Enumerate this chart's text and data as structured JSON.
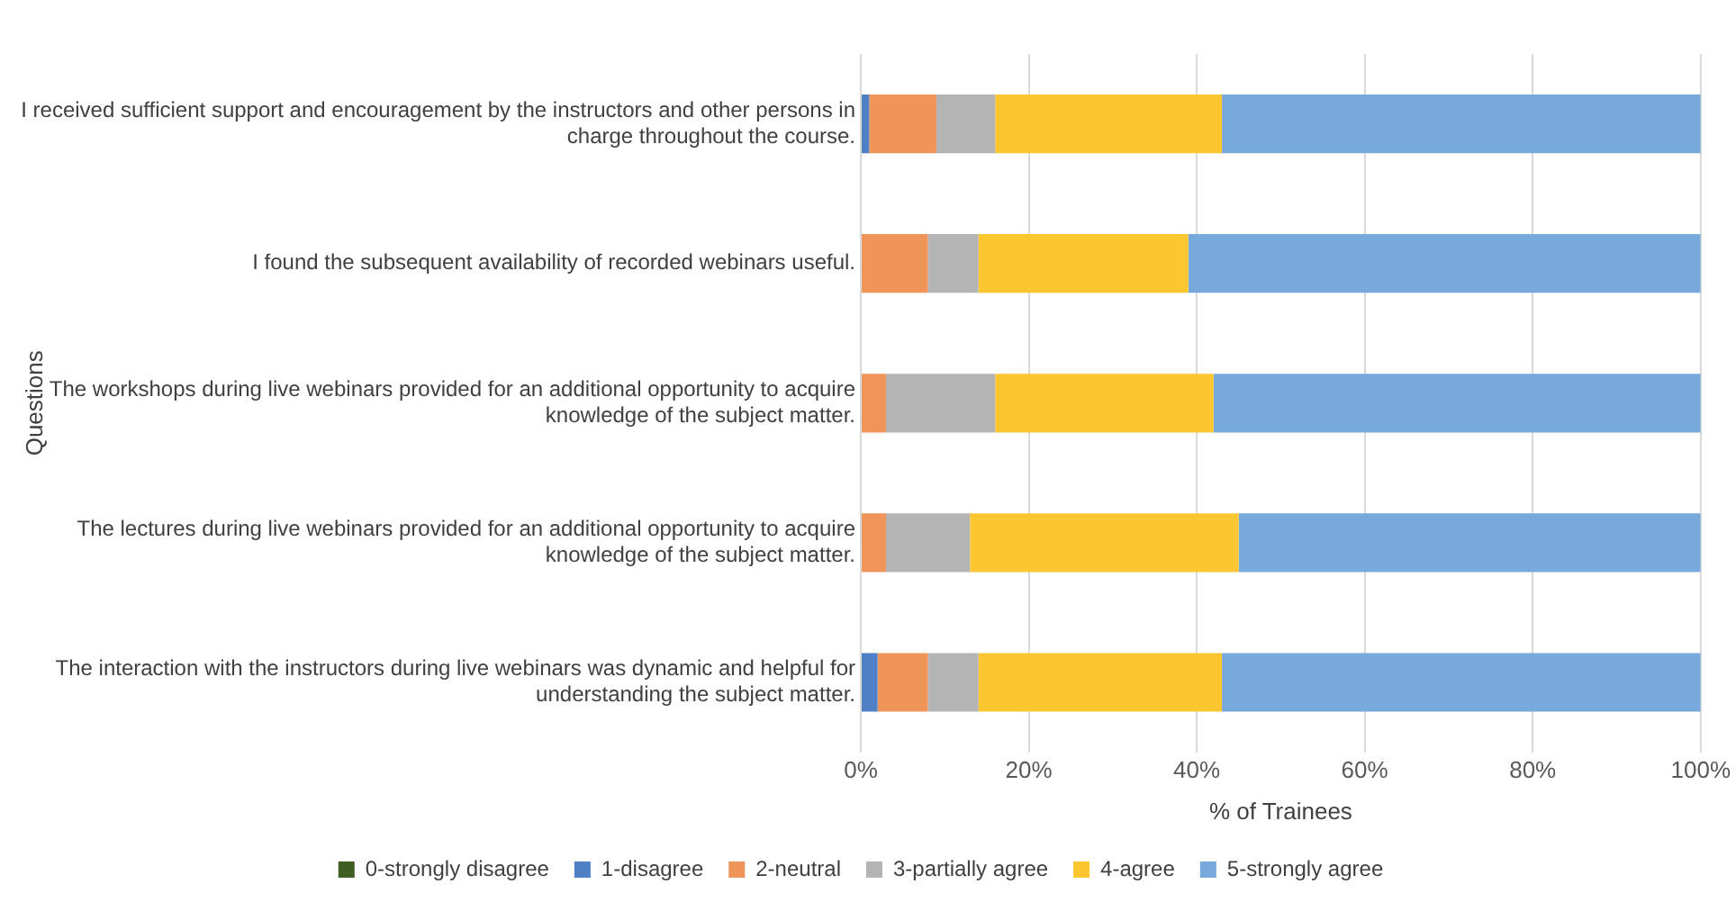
{
  "chart_data": {
    "type": "bar",
    "orientation": "horizontal",
    "stacked": true,
    "xlabel": "% of Trainees",
    "ylabel": "Questions",
    "categories": [
      "I received sufficient support and encouragement by the instructors and other persons in charge throughout the course.",
      "I found the subsequent availability of recorded webinars useful.",
      "The workshops during live webinars provided for an additional opportunity to acquire knowledge of the subject matter.",
      "The lectures during live webinars provided for an additional opportunity to acquire knowledge of the subject matter.",
      "The interaction with the instructors during live webinars was dynamic and helpful for understanding the subject matter."
    ],
    "series": [
      {
        "name": "0-strongly disagree",
        "color": "#3f5f22",
        "values": [
          0,
          0,
          0,
          0,
          0
        ]
      },
      {
        "name": "1-disagree",
        "color": "#4f7fc4",
        "values": [
          1,
          0,
          0,
          0,
          2
        ]
      },
      {
        "name": "2-neutral",
        "color": "#f0955a",
        "values": [
          8,
          8,
          3,
          3,
          6
        ]
      },
      {
        "name": "3-partially agree",
        "color": "#b4b4b4",
        "values": [
          7,
          6,
          13,
          10,
          6
        ]
      },
      {
        "name": "4-agree",
        "color": "#fcc630",
        "values": [
          27,
          25,
          26,
          32,
          29
        ]
      },
      {
        "name": "5-strongly agree",
        "color": "#78a9dc",
        "values": [
          57,
          61,
          58,
          55,
          57
        ]
      }
    ],
    "xlim": [
      0,
      100
    ],
    "xticks": [
      {
        "value": 0,
        "label": "0%"
      },
      {
        "value": 20,
        "label": "20%"
      },
      {
        "value": 40,
        "label": "40%"
      },
      {
        "value": 60,
        "label": "60%"
      },
      {
        "value": 80,
        "label": "80%"
      },
      {
        "value": 100,
        "label": "100%"
      }
    ],
    "grid": "x",
    "legend": "bottom"
  }
}
